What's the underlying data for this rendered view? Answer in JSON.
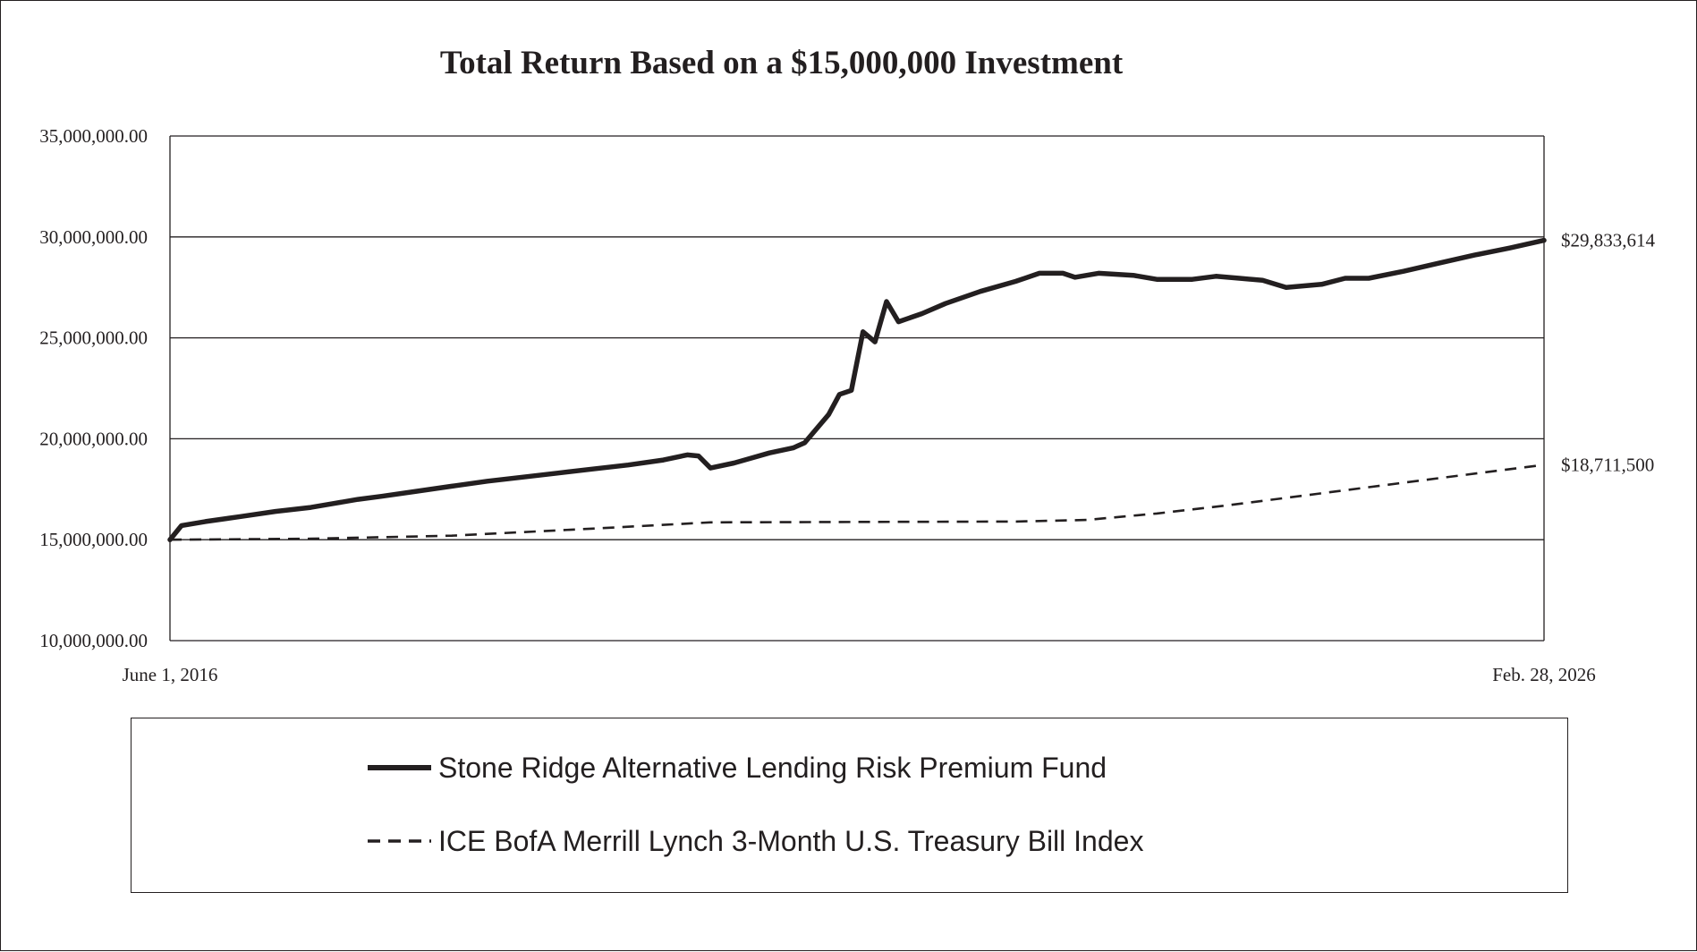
{
  "chart_data": {
    "type": "line",
    "title": "Total Return Based on a $15,000,000 Investment",
    "xlabel": "",
    "ylabel": "",
    "x_range": [
      "2016-06-01",
      "2026-02-28"
    ],
    "x_tick_labels": [
      "June 1, 2016",
      "Feb. 28, 2026"
    ],
    "ylim": [
      10000000,
      35000000
    ],
    "y_ticks": [
      10000000,
      15000000,
      20000000,
      25000000,
      30000000,
      35000000
    ],
    "y_tick_labels": [
      "10,000,000.00",
      "15,000,000.00",
      "20,000,000.00",
      "25,000,000.00",
      "30,000,000.00",
      "35,000,000.00"
    ],
    "grid": "horizontal",
    "legend_position": "bottom",
    "series": [
      {
        "name": "Stone Ridge Alternative Lending Risk Premium Fund",
        "style": "solid",
        "color": "#231f20",
        "end_label": "$29,833,614",
        "points": [
          [
            "2016-06-01",
            15000000
          ],
          [
            "2016-07-01",
            15700000
          ],
          [
            "2016-09-01",
            15900000
          ],
          [
            "2016-12-01",
            16150000
          ],
          [
            "2017-03-01",
            16400000
          ],
          [
            "2017-06-01",
            16600000
          ],
          [
            "2017-08-01",
            16800000
          ],
          [
            "2017-10-01",
            17000000
          ],
          [
            "2017-12-01",
            17150000
          ],
          [
            "2018-03-01",
            17400000
          ],
          [
            "2018-06-01",
            17650000
          ],
          [
            "2018-09-01",
            17900000
          ],
          [
            "2018-12-01",
            18100000
          ],
          [
            "2019-03-01",
            18300000
          ],
          [
            "2019-06-01",
            18500000
          ],
          [
            "2019-09-01",
            18700000
          ],
          [
            "2019-12-01",
            18950000
          ],
          [
            "2020-02-01",
            19200000
          ],
          [
            "2020-03-01",
            19150000
          ],
          [
            "2020-04-01",
            18550000
          ],
          [
            "2020-06-01",
            18800000
          ],
          [
            "2020-09-01",
            19300000
          ],
          [
            "2020-11-01",
            19550000
          ],
          [
            "2020-12-01",
            19800000
          ],
          [
            "2021-02-01",
            21200000
          ],
          [
            "2021-03-01",
            22200000
          ],
          [
            "2021-04-01",
            22400000
          ],
          [
            "2021-05-01",
            25300000
          ],
          [
            "2021-06-01",
            24800000
          ],
          [
            "2021-07-01",
            26800000
          ],
          [
            "2021-08-01",
            25800000
          ],
          [
            "2021-10-01",
            26200000
          ],
          [
            "2021-12-01",
            26700000
          ],
          [
            "2022-03-01",
            27300000
          ],
          [
            "2022-06-01",
            27800000
          ],
          [
            "2022-08-01",
            28200000
          ],
          [
            "2022-10-01",
            28200000
          ],
          [
            "2022-11-01",
            28000000
          ],
          [
            "2023-01-01",
            28200000
          ],
          [
            "2023-04-01",
            28100000
          ],
          [
            "2023-06-01",
            27900000
          ],
          [
            "2023-09-01",
            27900000
          ],
          [
            "2023-11-01",
            28050000
          ],
          [
            "2024-01-01",
            27950000
          ],
          [
            "2024-03-01",
            27850000
          ],
          [
            "2024-05-01",
            27500000
          ],
          [
            "2024-08-01",
            27650000
          ],
          [
            "2024-10-01",
            27950000
          ],
          [
            "2024-12-01",
            27950000
          ],
          [
            "2025-03-01",
            28300000
          ],
          [
            "2025-06-01",
            28700000
          ],
          [
            "2025-09-01",
            29100000
          ],
          [
            "2025-12-01",
            29450000
          ],
          [
            "2026-02-28",
            29833614
          ]
        ]
      },
      {
        "name": "ICE BofA Merrill Lynch 3-Month U.S. Treasury Bill Index",
        "style": "dashed",
        "color": "#231f20",
        "end_label": "$18,711,500",
        "points": [
          [
            "2016-06-01",
            15000000
          ],
          [
            "2017-06-01",
            15050000
          ],
          [
            "2018-06-01",
            15200000
          ],
          [
            "2019-06-01",
            15550000
          ],
          [
            "2020-04-01",
            15860000
          ],
          [
            "2021-06-01",
            15880000
          ],
          [
            "2022-06-01",
            15900000
          ],
          [
            "2022-12-01",
            15980000
          ],
          [
            "2023-06-01",
            16300000
          ],
          [
            "2023-12-01",
            16700000
          ],
          [
            "2024-06-01",
            17150000
          ],
          [
            "2024-12-01",
            17600000
          ],
          [
            "2025-06-01",
            18050000
          ],
          [
            "2026-02-28",
            18711500
          ]
        ]
      }
    ]
  }
}
